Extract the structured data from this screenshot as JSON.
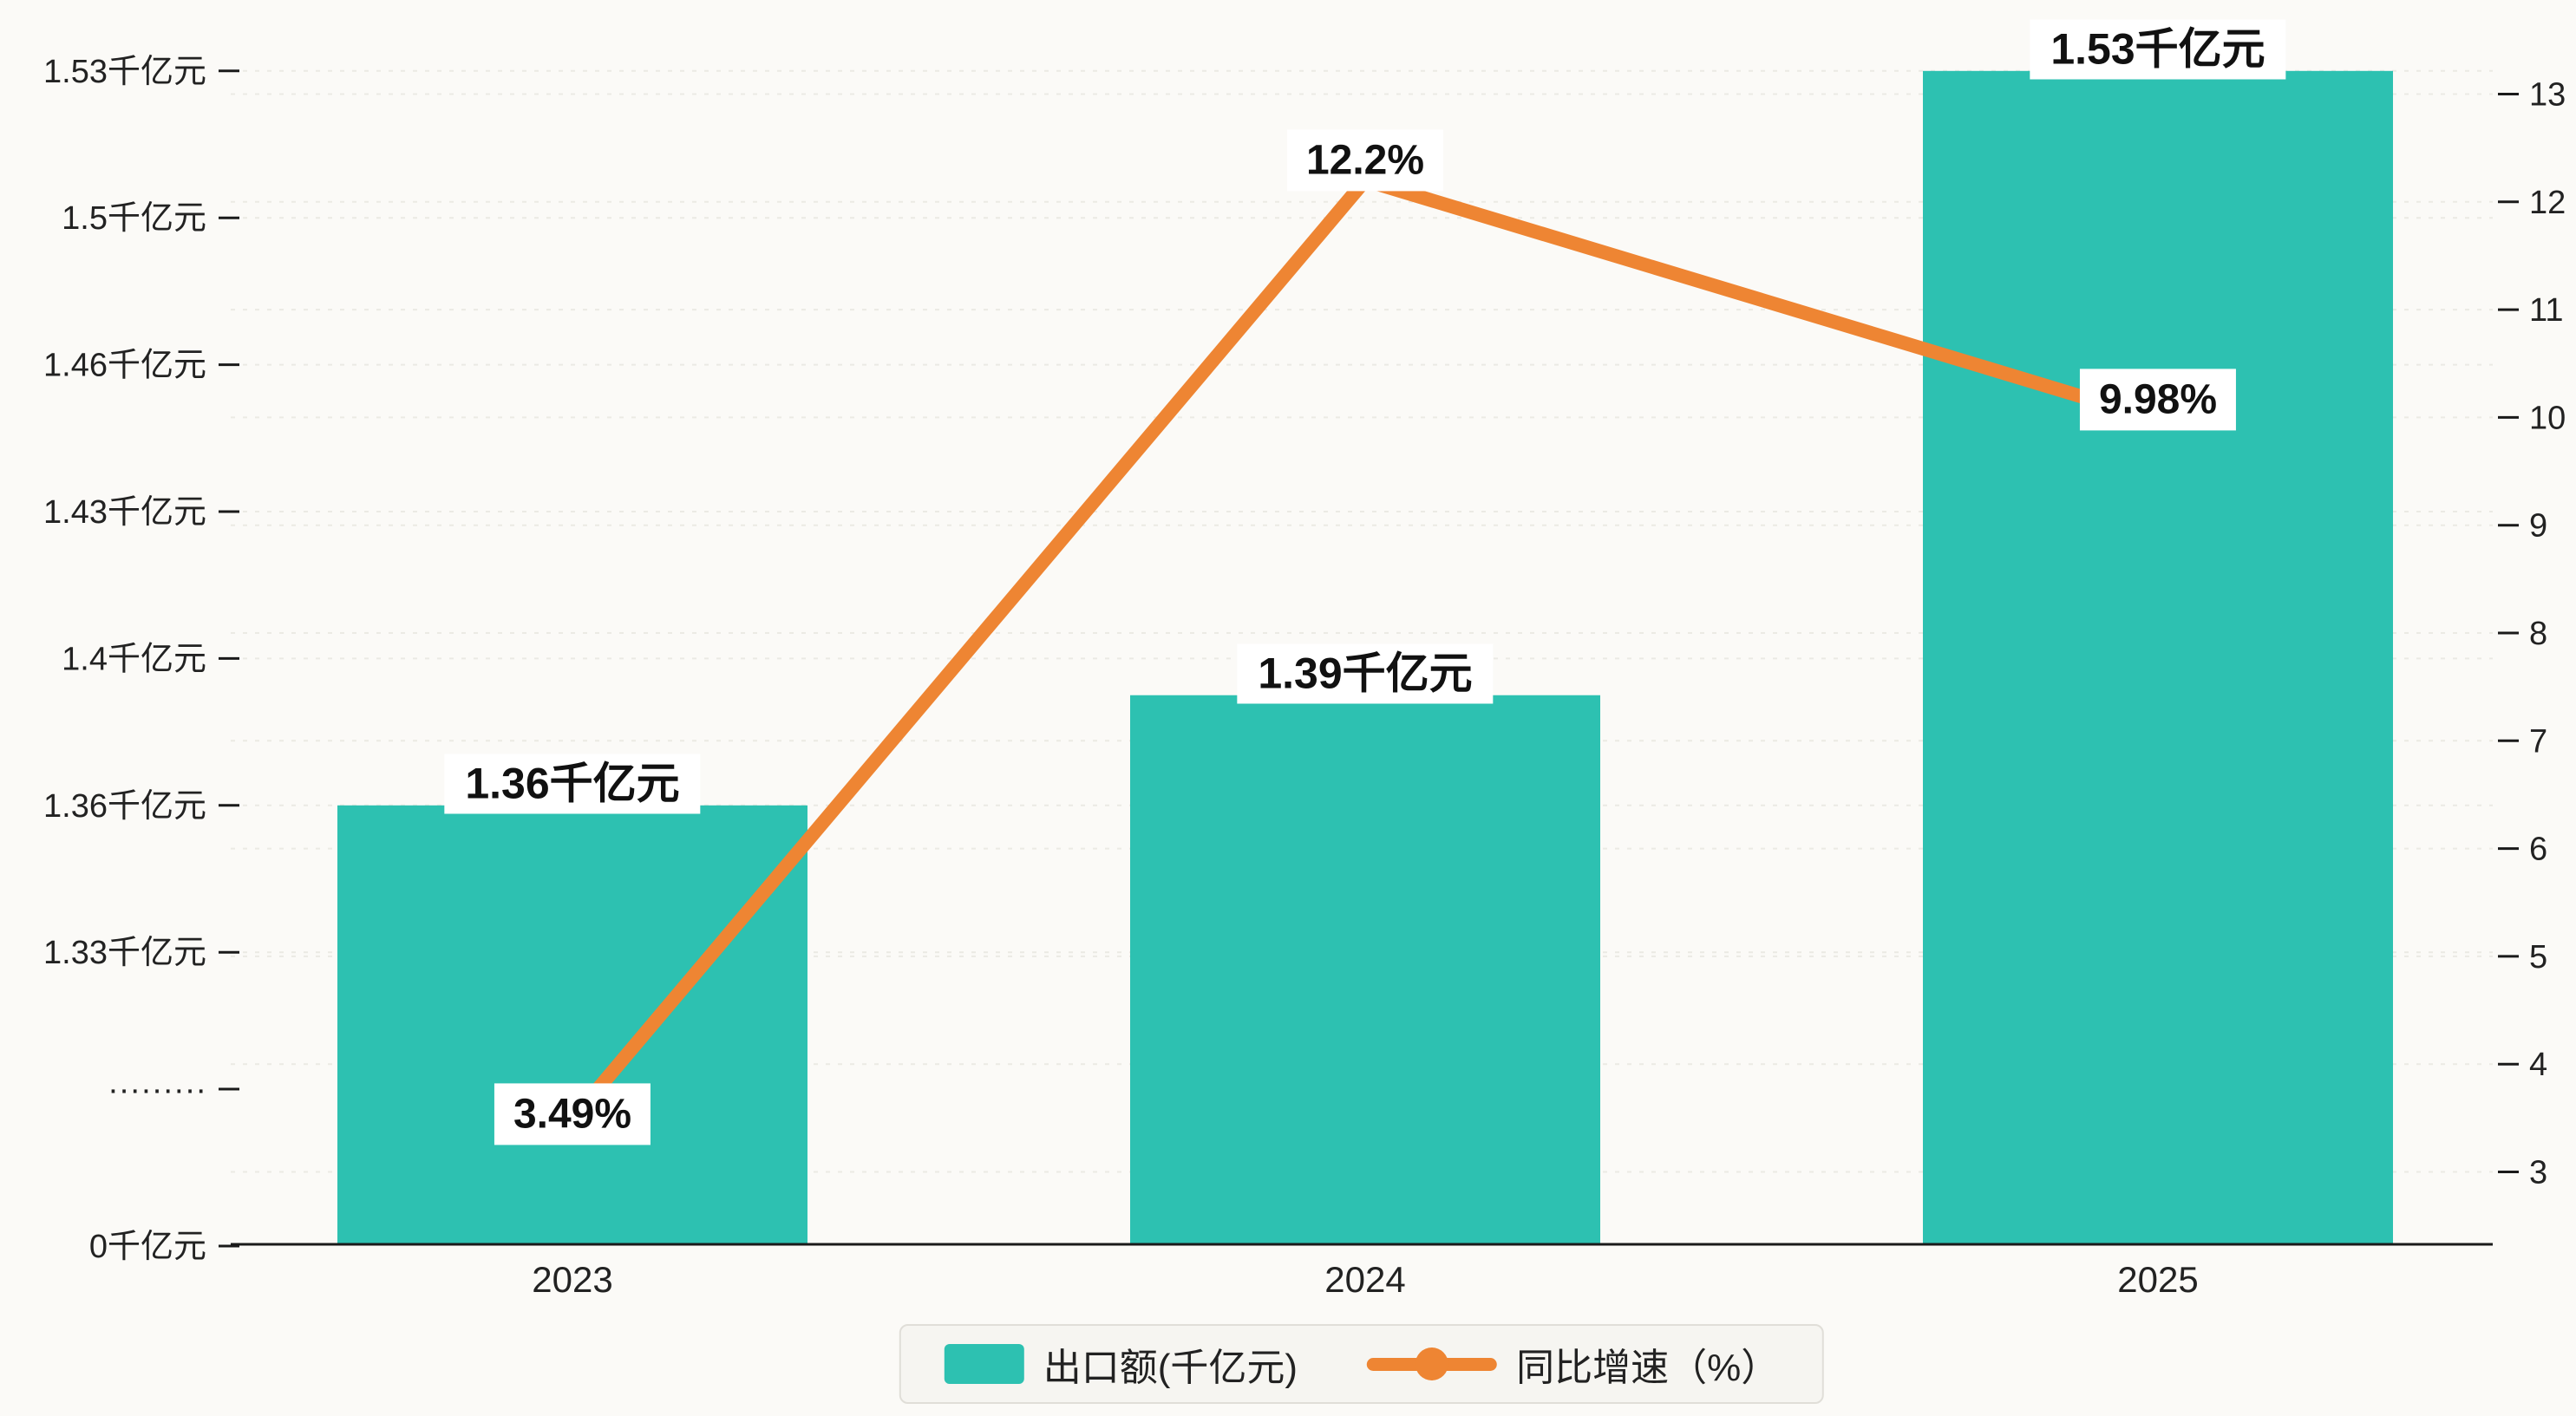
{
  "colors": {
    "bar": "#2dc1b1",
    "line": "#ee8533",
    "background": "#fbfaf7",
    "grid": "#ebeae4",
    "axis": "#1a1a1a",
    "text": "#222222",
    "label_box": "#ffffff"
  },
  "chart_data": {
    "type": "bar",
    "subtype": "bar+line dual axis",
    "categories": [
      "2023",
      "2024",
      "2025"
    ],
    "series": [
      {
        "name": "出口额(千亿元)",
        "type": "bar",
        "axis": "left",
        "unit": "千亿元",
        "values": [
          1.36,
          1.39,
          1.53
        ],
        "labels": [
          "1.36千亿元",
          "1.39千亿元",
          "1.53千亿元"
        ],
        "color": "#2dc1b1"
      },
      {
        "name": "同比增速（%）",
        "type": "line",
        "axis": "right",
        "unit": "%",
        "values": [
          3.49,
          12.2,
          9.98
        ],
        "labels": [
          "3.49%",
          "12.2%",
          "9.98%"
        ],
        "color": "#ee8533"
      }
    ],
    "left_axis": {
      "tick_labels": [
        "1.53千亿元",
        "1.5千亿元",
        "1.46千亿元",
        "1.43千亿元",
        "1.4千亿元",
        "1.36千亿元",
        "1.33千亿元",
        "·········",
        "0千亿元"
      ],
      "tick_values": [
        1.53,
        1.5,
        1.46,
        1.43,
        1.4,
        1.36,
        1.33,
        null,
        0
      ],
      "has_break": true
    },
    "right_axis": {
      "ticks": [
        3,
        4,
        5,
        6,
        7,
        8,
        9,
        10,
        11,
        12,
        13
      ],
      "min": 3,
      "max": 13
    },
    "grid": "dashed horizontal",
    "legend_position": "bottom center",
    "legend": [
      {
        "label": "出口额(千亿元)",
        "color": "#2dc1b1",
        "marker": "rect"
      },
      {
        "label": "同比增速（%）",
        "color": "#ee8533",
        "marker": "line-dot"
      }
    ]
  }
}
